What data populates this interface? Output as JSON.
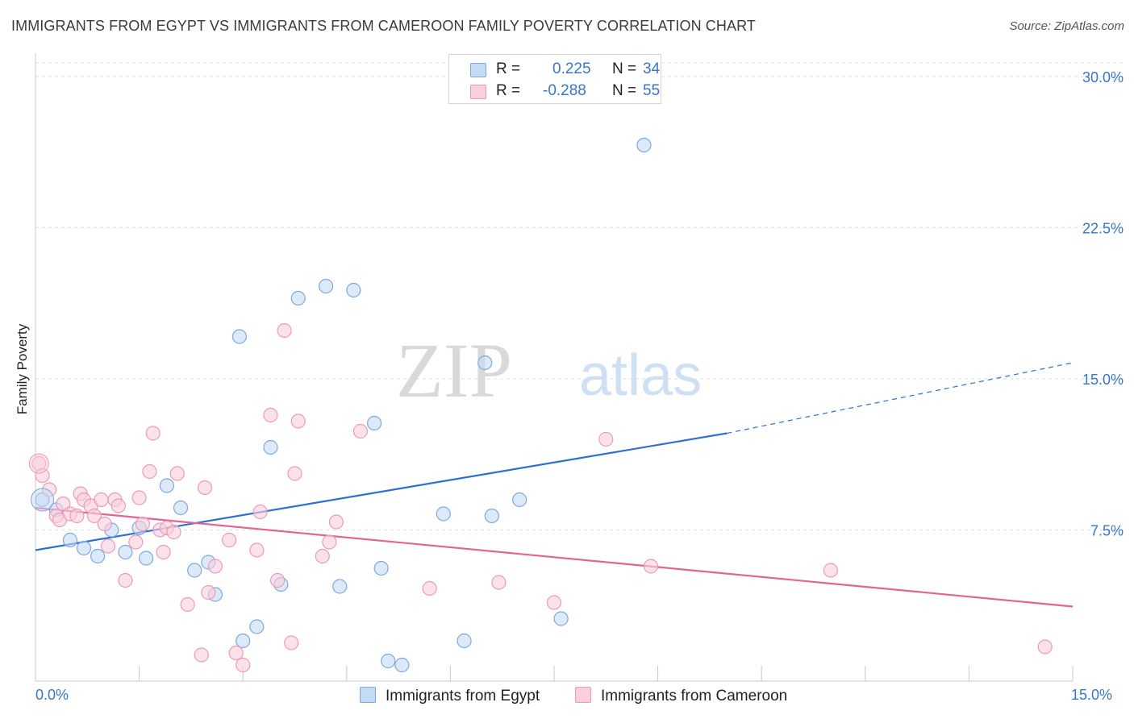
{
  "header": {
    "title": "IMMIGRANTS FROM EGYPT VS IMMIGRANTS FROM CAMEROON FAMILY POVERTY CORRELATION CHART",
    "source": "Source: ZipAtlas.com"
  },
  "watermark": {
    "zip": "ZIP",
    "atlas": "atlas"
  },
  "legend": {
    "rows": [
      {
        "r_label": "R =",
        "r_value": "0.225",
        "n_label": "N =",
        "n_value": "34",
        "color": "#aac8f0"
      },
      {
        "r_label": "R =",
        "r_value": "-0.288",
        "n_label": "N =",
        "n_value": "55",
        "color": "#f7bcd0"
      }
    ]
  },
  "bottom_legend": {
    "egypt": "Immigrants from Egypt",
    "cameroon": "Immigrants from Cameroon"
  },
  "colors": {
    "egypt_fill": "#c5daf5",
    "egypt_stroke": "#7fa8dd",
    "egypt_line": "#2f6fd0",
    "cameroon_fill": "#f9cfdc",
    "cameroon_stroke": "#ec9bb5",
    "cameroon_line": "#e36490",
    "tick_label": "#3a76c4",
    "grid": "#dedede"
  },
  "chart_data": {
    "type": "scatter",
    "title": "IMMIGRANTS FROM EGYPT VS IMMIGRANTS FROM CAMEROON FAMILY POVERTY CORRELATION CHART",
    "xlabel": "",
    "ylabel": "Family Poverty",
    "xlim": [
      0,
      15
    ],
    "ylim": [
      0,
      31
    ],
    "y_ticks": [
      7.5,
      15.0,
      22.5,
      30.0
    ],
    "y_tick_labels": [
      "7.5%",
      "15.0%",
      "22.5%",
      "30.0%"
    ],
    "x_tick_labels": [
      "0.0%",
      "15.0%"
    ],
    "grid": "horizontal dashed",
    "legend_position": "top-center",
    "series": [
      {
        "name": "Immigrants from Egypt",
        "points": [
          [
            0.1,
            9.0
          ],
          [
            0.3,
            8.5
          ],
          [
            0.5,
            7.0
          ],
          [
            0.7,
            6.6
          ],
          [
            0.9,
            6.2
          ],
          [
            1.1,
            7.5
          ],
          [
            1.3,
            6.4
          ],
          [
            1.5,
            7.6
          ],
          [
            1.6,
            6.1
          ],
          [
            1.9,
            9.7
          ],
          [
            2.1,
            8.6
          ],
          [
            2.3,
            5.5
          ],
          [
            2.5,
            5.9
          ],
          [
            2.6,
            4.3
          ],
          [
            2.95,
            17.1
          ],
          [
            3.0,
            2.0
          ],
          [
            3.2,
            2.7
          ],
          [
            3.4,
            11.6
          ],
          [
            3.55,
            4.8
          ],
          [
            3.8,
            19.0
          ],
          [
            4.2,
            19.6
          ],
          [
            4.4,
            4.7
          ],
          [
            4.6,
            19.4
          ],
          [
            5.0,
            5.6
          ],
          [
            4.9,
            12.8
          ],
          [
            5.1,
            1.0
          ],
          [
            5.3,
            0.8
          ],
          [
            5.9,
            8.3
          ],
          [
            6.2,
            2.0
          ],
          [
            6.6,
            8.2
          ],
          [
            6.5,
            15.8
          ],
          [
            7.0,
            9.0
          ],
          [
            7.6,
            3.1
          ],
          [
            8.8,
            26.6
          ]
        ],
        "trend": {
          "x0": 0,
          "y0": 6.5,
          "x1": 10.0,
          "y1": 12.3,
          "x_end_dashed": 15,
          "y_end_dashed": 15.8
        }
      },
      {
        "name": "Immigrants from Cameroon",
        "points": [
          [
            0.05,
            10.8
          ],
          [
            0.1,
            10.2
          ],
          [
            0.2,
            9.5
          ],
          [
            0.3,
            8.2
          ],
          [
            0.35,
            8.0
          ],
          [
            0.4,
            8.8
          ],
          [
            0.5,
            8.3
          ],
          [
            0.6,
            8.2
          ],
          [
            0.65,
            9.3
          ],
          [
            0.7,
            9.0
          ],
          [
            0.8,
            8.7
          ],
          [
            0.85,
            8.2
          ],
          [
            0.95,
            9.0
          ],
          [
            1.0,
            7.8
          ],
          [
            1.05,
            6.7
          ],
          [
            1.15,
            9.0
          ],
          [
            1.2,
            8.7
          ],
          [
            1.3,
            5.0
          ],
          [
            1.45,
            6.9
          ],
          [
            1.5,
            9.1
          ],
          [
            1.55,
            7.8
          ],
          [
            1.65,
            10.4
          ],
          [
            1.7,
            12.3
          ],
          [
            1.8,
            7.5
          ],
          [
            1.85,
            6.4
          ],
          [
            1.9,
            7.6
          ],
          [
            2.0,
            7.4
          ],
          [
            2.05,
            10.3
          ],
          [
            2.2,
            3.8
          ],
          [
            2.4,
            1.3
          ],
          [
            2.45,
            9.6
          ],
          [
            2.5,
            4.4
          ],
          [
            2.6,
            5.7
          ],
          [
            2.8,
            7.0
          ],
          [
            2.9,
            1.4
          ],
          [
            3.0,
            0.8
          ],
          [
            3.2,
            6.5
          ],
          [
            3.25,
            8.4
          ],
          [
            3.4,
            13.2
          ],
          [
            3.5,
            5.0
          ],
          [
            3.6,
            17.4
          ],
          [
            3.7,
            1.9
          ],
          [
            3.75,
            10.3
          ],
          [
            3.8,
            12.9
          ],
          [
            4.15,
            6.2
          ],
          [
            4.25,
            6.9
          ],
          [
            4.35,
            7.9
          ],
          [
            4.7,
            12.4
          ],
          [
            5.7,
            4.6
          ],
          [
            6.7,
            4.9
          ],
          [
            7.5,
            3.9
          ],
          [
            8.25,
            12.0
          ],
          [
            8.9,
            5.7
          ],
          [
            11.5,
            5.5
          ],
          [
            14.6,
            1.7
          ]
        ],
        "trend": {
          "x0": 0,
          "y0": 8.6,
          "x1": 15,
          "y1": 3.7
        }
      }
    ]
  }
}
